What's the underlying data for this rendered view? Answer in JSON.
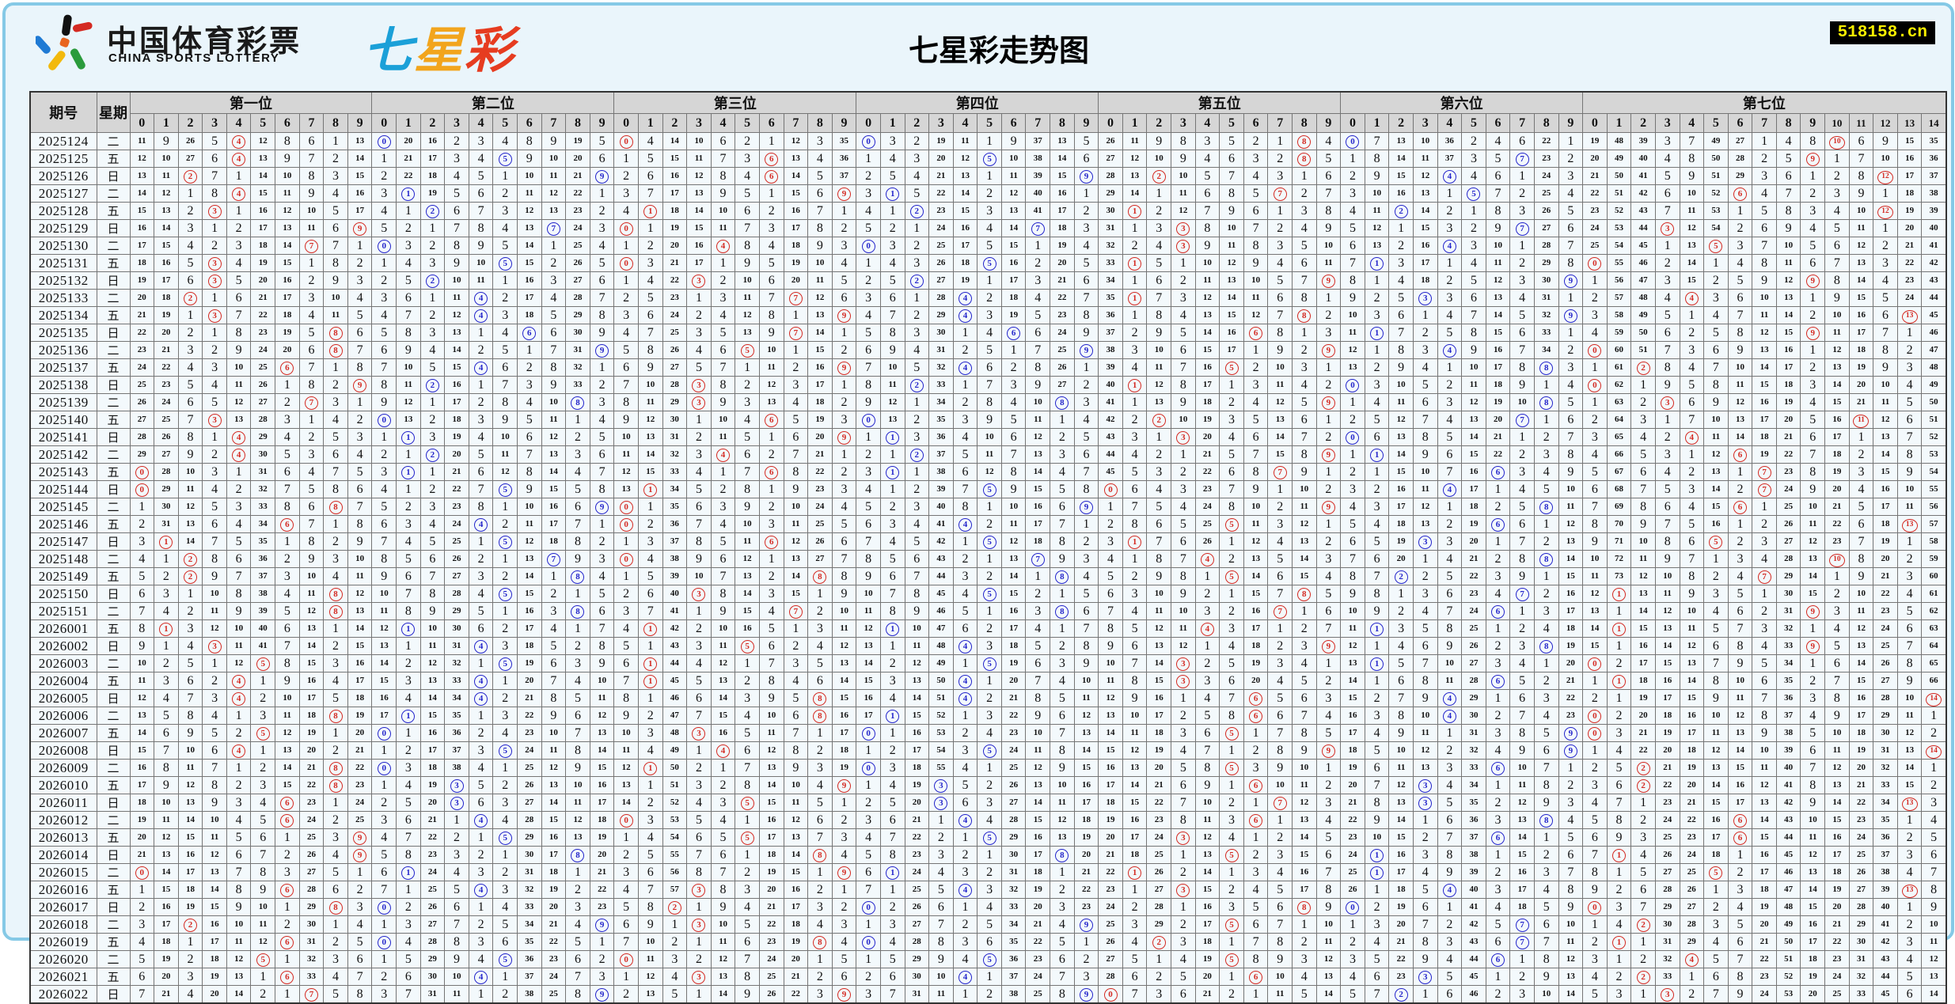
{
  "page": {
    "logo_cn": "中国体育彩票",
    "logo_en": "CHINA SPORTS LOTTERY",
    "brand": [
      "七",
      "星",
      "彩"
    ],
    "title": "七星彩走势图",
    "badge": "518158.cn"
  },
  "table": {
    "issue_header": "期号",
    "week_header": "星期",
    "groups": [
      {
        "label": "第一位",
        "cols": 10
      },
      {
        "label": "第二位",
        "cols": 10
      },
      {
        "label": "第三位",
        "cols": 10
      },
      {
        "label": "第四位",
        "cols": 10
      },
      {
        "label": "第五位",
        "cols": 10
      },
      {
        "label": "第六位",
        "cols": 10
      },
      {
        "label": "第七位",
        "cols": 15
      }
    ],
    "circle_color_by_group": [
      "red",
      "blue",
      "red",
      "blue",
      "red",
      "blue",
      "red"
    ],
    "colors": {
      "red": "#d42a22",
      "blue": "#2425cb"
    },
    "baseline_miss": [
      [
        11,
        9,
        26,
        5,
        0,
        12,
        8,
        6,
        1,
        13
      ],
      [
        0,
        20,
        16,
        2,
        3,
        4,
        8,
        9,
        19,
        5
      ],
      [
        0,
        4,
        14,
        10,
        6,
        2,
        1,
        12,
        3,
        35
      ],
      [
        0,
        3,
        2,
        19,
        11,
        1,
        9,
        37,
        13,
        5
      ],
      [
        26,
        11,
        9,
        8,
        3,
        5,
        2,
        1,
        0,
        4
      ],
      [
        0,
        7,
        13,
        10,
        36,
        2,
        4,
        6,
        22,
        1
      ],
      [
        19,
        48,
        39,
        3,
        7,
        49,
        27,
        1,
        4,
        8,
        0,
        6,
        9,
        15,
        35
      ]
    ],
    "rows": [
      {
        "issue": "2025124",
        "week": "二",
        "draw": [
          4,
          0,
          0,
          0,
          8,
          0,
          10
        ]
      },
      {
        "issue": "2025125",
        "week": "五",
        "draw": [
          4,
          5,
          6,
          5,
          8,
          7,
          9
        ]
      },
      {
        "issue": "2025126",
        "week": "日",
        "draw": [
          2,
          9,
          6,
          9,
          2,
          4,
          12
        ]
      },
      {
        "issue": "2025127",
        "week": "二",
        "draw": [
          4,
          1,
          9,
          1,
          7,
          5,
          6
        ]
      },
      {
        "issue": "2025128",
        "week": "五",
        "draw": [
          3,
          2,
          1,
          2,
          1,
          2,
          12
        ]
      },
      {
        "issue": "2025129",
        "week": "日",
        "draw": [
          9,
          7,
          0,
          7,
          3,
          7,
          3
        ]
      },
      {
        "issue": "2025130",
        "week": "二",
        "draw": [
          7,
          0,
          4,
          0,
          3,
          4,
          5
        ]
      },
      {
        "issue": "2025131",
        "week": "五",
        "draw": [
          3,
          5,
          0,
          5,
          1,
          1,
          0
        ]
      },
      {
        "issue": "2025132",
        "week": "日",
        "draw": [
          3,
          2,
          3,
          2,
          9,
          9,
          9
        ]
      },
      {
        "issue": "2025133",
        "week": "二",
        "draw": [
          2,
          4,
          7,
          4,
          1,
          3,
          4
        ]
      },
      {
        "issue": "2025134",
        "week": "五",
        "draw": [
          3,
          4,
          9,
          4,
          8,
          9,
          13
        ]
      },
      {
        "issue": "2025135",
        "week": "日",
        "draw": [
          8,
          6,
          7,
          6,
          6,
          1,
          9
        ]
      },
      {
        "issue": "2025136",
        "week": "二",
        "draw": [
          8,
          9,
          5,
          9,
          9,
          4,
          0
        ]
      },
      {
        "issue": "2025137",
        "week": "五",
        "draw": [
          6,
          4,
          9,
          4,
          5,
          8,
          2
        ]
      },
      {
        "issue": "2025138",
        "week": "日",
        "draw": [
          9,
          2,
          3,
          2,
          1,
          0,
          0
        ]
      },
      {
        "issue": "2025139",
        "week": "二",
        "draw": [
          7,
          8,
          3,
          8,
          9,
          8,
          3
        ]
      },
      {
        "issue": "2025140",
        "week": "五",
        "draw": [
          3,
          0,
          6,
          0,
          2,
          7,
          11
        ]
      },
      {
        "issue": "2025141",
        "week": "日",
        "draw": [
          4,
          1,
          9,
          1,
          3,
          0,
          4
        ]
      },
      {
        "issue": "2025142",
        "week": "二",
        "draw": [
          4,
          2,
          4,
          2,
          9,
          1,
          6
        ]
      },
      {
        "issue": "2025143",
        "week": "五",
        "draw": [
          0,
          1,
          6,
          1,
          7,
          6,
          7
        ]
      },
      {
        "issue": "2025144",
        "week": "日",
        "draw": [
          0,
          5,
          1,
          5,
          0,
          4,
          7
        ]
      },
      {
        "issue": "2025145",
        "week": "二",
        "draw": [
          8,
          9,
          0,
          9,
          9,
          8,
          6
        ]
      },
      {
        "issue": "2025146",
        "week": "五",
        "draw": [
          6,
          4,
          0,
          4,
          5,
          6,
          13
        ]
      },
      {
        "issue": "2025147",
        "week": "日",
        "draw": [
          1,
          5,
          6,
          5,
          1,
          3,
          5
        ]
      },
      {
        "issue": "2025148",
        "week": "二",
        "draw": [
          2,
          7,
          0,
          7,
          4,
          8,
          10
        ]
      },
      {
        "issue": "2025149",
        "week": "五",
        "draw": [
          2,
          8,
          8,
          8,
          5,
          2,
          7
        ]
      },
      {
        "issue": "2025150",
        "week": "日",
        "draw": [
          8,
          5,
          3,
          5,
          8,
          7,
          1
        ]
      },
      {
        "issue": "2025151",
        "week": "二",
        "draw": [
          8,
          8,
          7,
          8,
          7,
          6,
          9
        ]
      },
      {
        "issue": "2026001",
        "week": "五",
        "draw": [
          1,
          1,
          1,
          1,
          4,
          1,
          1
        ]
      },
      {
        "issue": "2026002",
        "week": "日",
        "draw": [
          3,
          4,
          5,
          4,
          9,
          8,
          9
        ]
      },
      {
        "issue": "2026003",
        "week": "二",
        "draw": [
          5,
          5,
          1,
          5,
          3,
          1,
          0
        ]
      },
      {
        "issue": "2026004",
        "week": "五",
        "draw": [
          4,
          4,
          1,
          4,
          3,
          6,
          1
        ]
      },
      {
        "issue": "2026005",
        "week": "日",
        "draw": [
          4,
          4,
          8,
          4,
          6,
          4,
          14
        ]
      },
      {
        "issue": "2026006",
        "week": "二",
        "draw": [
          8,
          1,
          8,
          1,
          6,
          4,
          0
        ]
      },
      {
        "issue": "2026007",
        "week": "五",
        "draw": [
          5,
          0,
          3,
          0,
          5,
          9,
          0
        ]
      },
      {
        "issue": "2026008",
        "week": "日",
        "draw": [
          4,
          5,
          4,
          5,
          9,
          9,
          14
        ]
      },
      {
        "issue": "2026009",
        "week": "二",
        "draw": [
          8,
          0,
          1,
          0,
          5,
          6,
          2
        ]
      },
      {
        "issue": "2026010",
        "week": "五",
        "draw": [
          8,
          3,
          9,
          3,
          6,
          3,
          2
        ]
      },
      {
        "issue": "2026011",
        "week": "日",
        "draw": [
          6,
          3,
          5,
          3,
          7,
          3,
          13
        ]
      },
      {
        "issue": "2026012",
        "week": "二",
        "draw": [
          6,
          4,
          0,
          4,
          6,
          8,
          6
        ]
      },
      {
        "issue": "2026013",
        "week": "五",
        "draw": [
          9,
          5,
          5,
          5,
          3,
          6,
          6
        ]
      },
      {
        "issue": "2026014",
        "week": "日",
        "draw": [
          9,
          8,
          8,
          8,
          5,
          1,
          1
        ]
      },
      {
        "issue": "2026015",
        "week": "二",
        "draw": [
          0,
          1,
          9,
          1,
          1,
          1,
          5
        ]
      },
      {
        "issue": "2026016",
        "week": "五",
        "draw": [
          6,
          4,
          3,
          4,
          3,
          4,
          13
        ]
      },
      {
        "issue": "2026017",
        "week": "日",
        "draw": [
          8,
          0,
          2,
          0,
          8,
          0,
          0
        ]
      },
      {
        "issue": "2026018",
        "week": "二",
        "draw": [
          2,
          9,
          3,
          9,
          5,
          7,
          2
        ]
      },
      {
        "issue": "2026019",
        "week": "五",
        "draw": [
          6,
          0,
          8,
          0,
          2,
          7,
          1
        ]
      },
      {
        "issue": "2026020",
        "week": "二",
        "draw": [
          5,
          5,
          0,
          5,
          5,
          6,
          4
        ]
      },
      {
        "issue": "2026021",
        "week": "五",
        "draw": [
          6,
          4,
          3,
          4,
          6,
          3,
          2
        ]
      },
      {
        "issue": "2026022",
        "week": "日",
        "draw": [
          7,
          9,
          9,
          9,
          0,
          2,
          3
        ]
      }
    ]
  }
}
